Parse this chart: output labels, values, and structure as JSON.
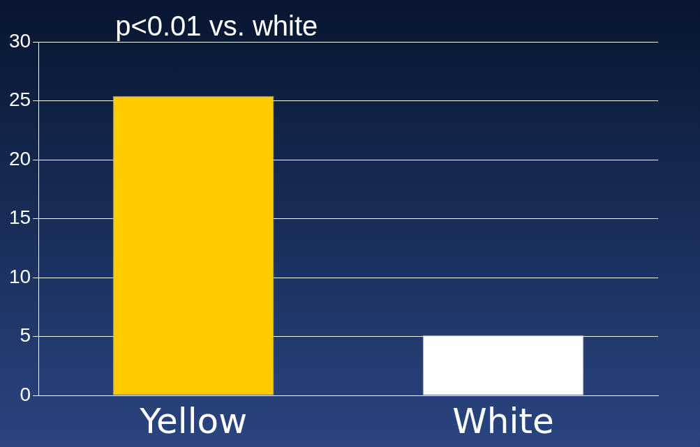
{
  "chart_data": {
    "type": "bar",
    "categories": [
      "Yellow",
      "White"
    ],
    "values": [
      25.4,
      5.1
    ],
    "colors": [
      "#ffcc00",
      "#ffffff"
    ],
    "ylim": [
      0,
      30
    ],
    "yticks": [
      0,
      5,
      10,
      15,
      20,
      25,
      30
    ],
    "grid": "y",
    "annotations": [
      "p<0.01 vs. white"
    ]
  }
}
